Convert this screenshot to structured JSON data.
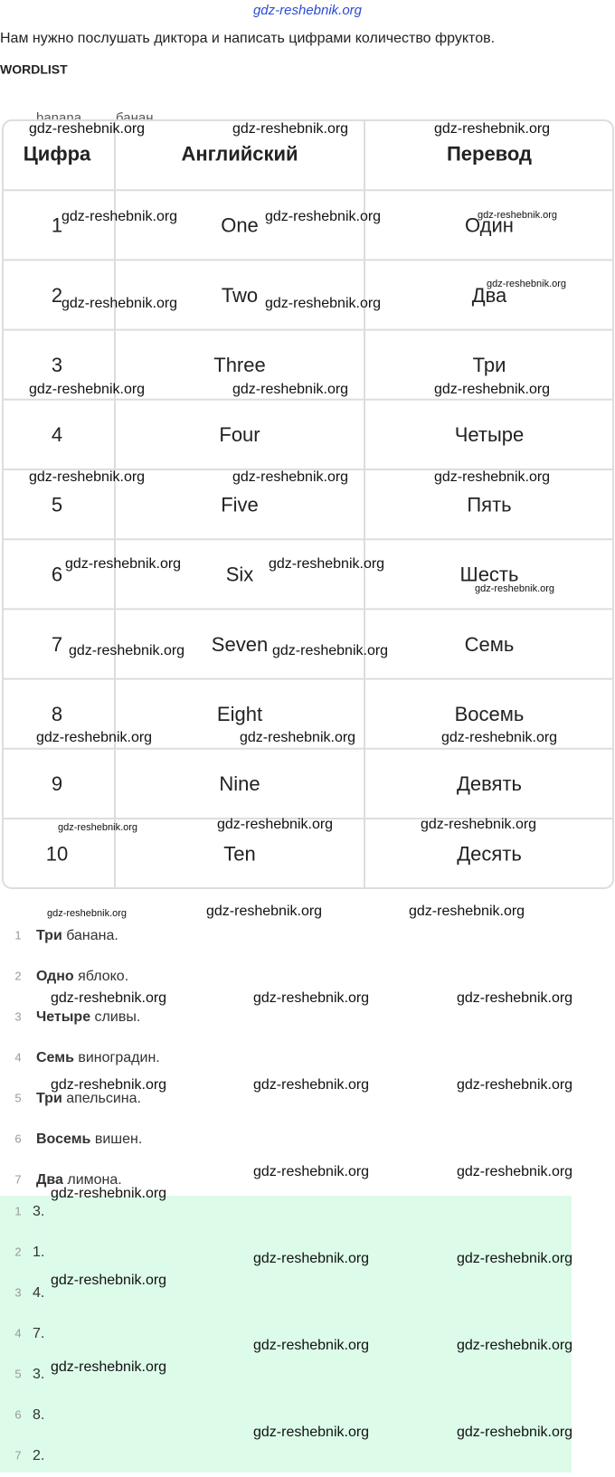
{
  "site_mark": "gdz-reshebnik.org",
  "instruction": "Нам нужно послушать диктора и написать цифрами количество фруктов.",
  "wordlist_title": "WORDLIST",
  "wordlist_peek": [
    "banana",
    "банан"
  ],
  "table": {
    "header": [
      "Цифра",
      "Английский",
      "Перевод"
    ],
    "rows": [
      [
        "1",
        "One",
        "Один"
      ],
      [
        "2",
        "Two",
        "Два"
      ],
      [
        "3",
        "Three",
        "Три"
      ],
      [
        "4",
        "Four",
        "Четыре"
      ],
      [
        "5",
        "Five",
        "Пять"
      ],
      [
        "6",
        "Six",
        "Шесть"
      ],
      [
        "7",
        "Seven",
        "Семь"
      ],
      [
        "8",
        "Eight",
        "Восемь"
      ],
      [
        "9",
        "Nine",
        "Девять"
      ],
      [
        "10",
        "Ten",
        "Десять"
      ]
    ]
  },
  "sentences": [
    {
      "n": "1",
      "bold": "Три",
      "rest": "банана."
    },
    {
      "n": "2",
      "bold": "Одно",
      "rest": "яблоко."
    },
    {
      "n": "3",
      "bold": "Четыре",
      "rest": "сливы."
    },
    {
      "n": "4",
      "bold": "Семь",
      "rest": "виноградин."
    },
    {
      "n": "5",
      "bold": "Три",
      "rest": "апельсина."
    },
    {
      "n": "6",
      "bold": "Восемь",
      "rest": "вишен."
    },
    {
      "n": "7",
      "bold": "Два",
      "rest": "лимона."
    }
  ],
  "answers": [
    {
      "n": "1",
      "text": "3."
    },
    {
      "n": "2",
      "text": "1."
    },
    {
      "n": "3",
      "text": "4."
    },
    {
      "n": "4",
      "text": "7."
    },
    {
      "n": "5",
      "text": "3."
    },
    {
      "n": "6",
      "text": "8."
    },
    {
      "n": "7",
      "text": "2."
    }
  ]
}
